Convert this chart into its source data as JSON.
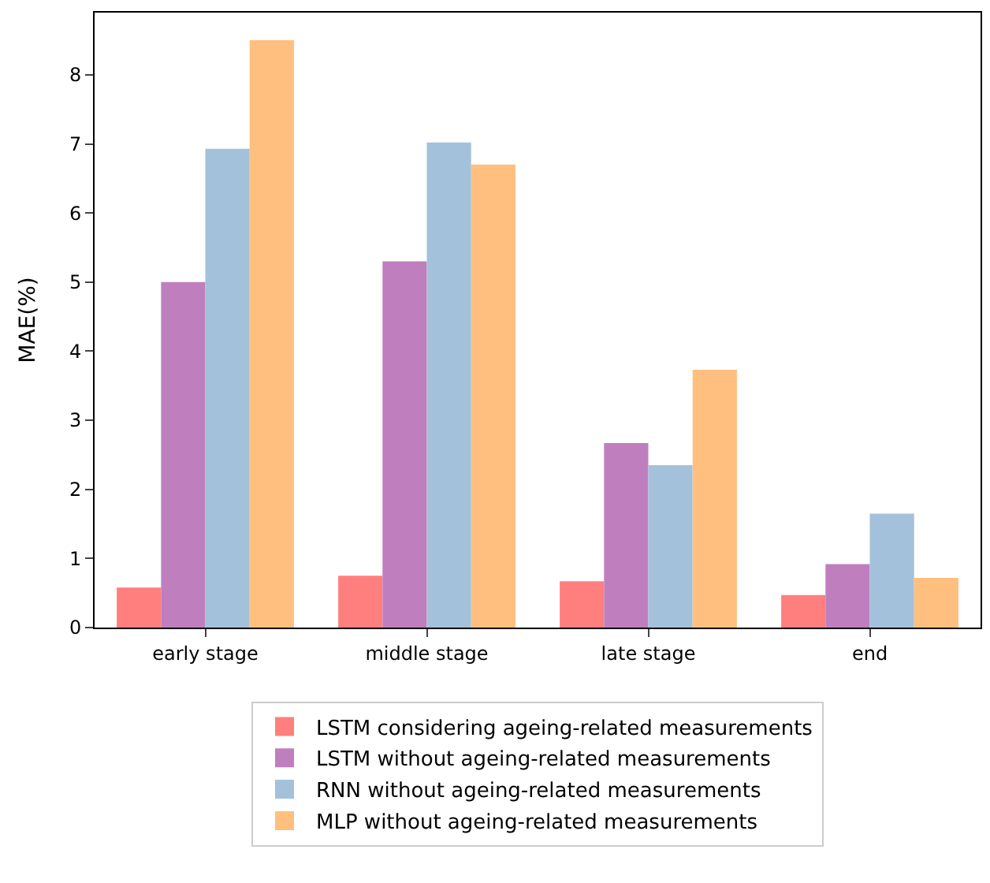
{
  "chart_data": {
    "type": "bar",
    "ylabel": "MAE(%)",
    "categories": [
      "early stage",
      "middle stage",
      "late stage",
      "end"
    ],
    "series": [
      {
        "name": "LSTM considering ageing-related measurements",
        "color": "#ff7f7f",
        "values": [
          0.58,
          0.75,
          0.67,
          0.47
        ]
      },
      {
        "name": "LSTM without ageing-related measurements",
        "color": "#bf7fbf",
        "values": [
          5.0,
          5.3,
          2.67,
          0.92
        ]
      },
      {
        "name": "RNN without ageing-related measurements",
        "color": "#a3c1da",
        "values": [
          6.93,
          7.02,
          2.35,
          1.65
        ]
      },
      {
        "name": "MLP without ageing-related measurements",
        "color": "#ffbf7f",
        "values": [
          8.5,
          6.7,
          3.73,
          0.72
        ]
      }
    ],
    "ylim": [
      0,
      8.9
    ],
    "yticks": [
      0,
      1,
      2,
      3,
      4,
      5,
      6,
      7,
      8
    ],
    "grid": false,
    "legend": "bottom"
  }
}
